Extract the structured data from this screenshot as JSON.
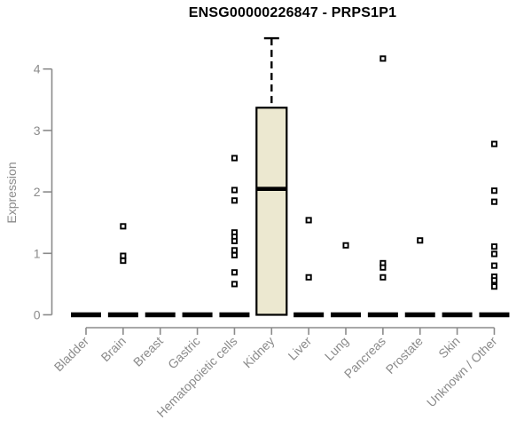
{
  "chart_data": {
    "type": "box",
    "title": "ENSG00000226847 - PRPS1P1",
    "ylabel": "Expression",
    "xlabel": "",
    "ylim": [
      0,
      4.6
    ],
    "yticks": [
      0,
      1,
      2,
      3,
      4
    ],
    "grid": false,
    "legend": false,
    "categories": [
      "Bladder",
      "Brain",
      "Breast",
      "Gastric",
      "Hematopoietic cells",
      "Kidney",
      "Liver",
      "Lung",
      "Pancreas",
      "Prostate",
      "Skin",
      "Unknown / Other"
    ],
    "series": [
      {
        "category": "Bladder",
        "q1": 0,
        "median": 0,
        "q3": 0,
        "whisker_low": 0,
        "whisker_high": 0,
        "outliers": []
      },
      {
        "category": "Brain",
        "q1": 0,
        "median": 0,
        "q3": 0,
        "whisker_low": 0,
        "whisker_high": 0,
        "outliers": [
          1.44,
          0.96,
          0.88
        ]
      },
      {
        "category": "Breast",
        "q1": 0,
        "median": 0,
        "q3": 0,
        "whisker_low": 0,
        "whisker_high": 0,
        "outliers": []
      },
      {
        "category": "Gastric",
        "q1": 0,
        "median": 0,
        "q3": 0,
        "whisker_low": 0,
        "whisker_high": 0,
        "outliers": []
      },
      {
        "category": "Hematopoietic cells",
        "q1": 0,
        "median": 0,
        "q3": 0,
        "whisker_low": 0,
        "whisker_high": 0,
        "outliers": [
          2.55,
          2.03,
          1.86,
          1.34,
          1.27,
          1.2,
          1.05,
          0.97,
          0.69,
          0.5
        ]
      },
      {
        "category": "Kidney",
        "q1": 0,
        "median": 2.05,
        "q3": 3.37,
        "whisker_low": 0,
        "whisker_high": 4.5,
        "outliers": []
      },
      {
        "category": "Liver",
        "q1": 0,
        "median": 0,
        "q3": 0,
        "whisker_low": 0,
        "whisker_high": 0,
        "outliers": [
          1.54,
          0.61
        ]
      },
      {
        "category": "Lung",
        "q1": 0,
        "median": 0,
        "q3": 0,
        "whisker_low": 0,
        "whisker_high": 0,
        "outliers": [
          1.13
        ]
      },
      {
        "category": "Pancreas",
        "q1": 0,
        "median": 0,
        "q3": 0,
        "whisker_low": 0,
        "whisker_high": 0,
        "outliers": [
          4.17,
          0.84,
          0.77,
          0.61
        ]
      },
      {
        "category": "Prostate",
        "q1": 0,
        "median": 0,
        "q3": 0,
        "whisker_low": 0,
        "whisker_high": 0,
        "outliers": [
          1.21
        ]
      },
      {
        "category": "Skin",
        "q1": 0,
        "median": 0,
        "q3": 0,
        "whisker_low": 0,
        "whisker_high": 0,
        "outliers": []
      },
      {
        "category": "Unknown / Other",
        "q1": 0,
        "median": 0,
        "q3": 0,
        "whisker_low": 0,
        "whisker_high": 0,
        "outliers": [
          2.78,
          2.02,
          1.84,
          1.11,
          0.99,
          0.8,
          0.62,
          0.56,
          0.46
        ]
      }
    ],
    "colors": {
      "box_fill": "#ece8d0",
      "box_stroke": "#000000",
      "median": "#000000",
      "whisker": "#000000",
      "outlier_stroke": "#000000",
      "outlier_fill": "#ffffff",
      "axis": "#8b8b8b",
      "title": "#000000",
      "background": "#ffffff"
    }
  }
}
